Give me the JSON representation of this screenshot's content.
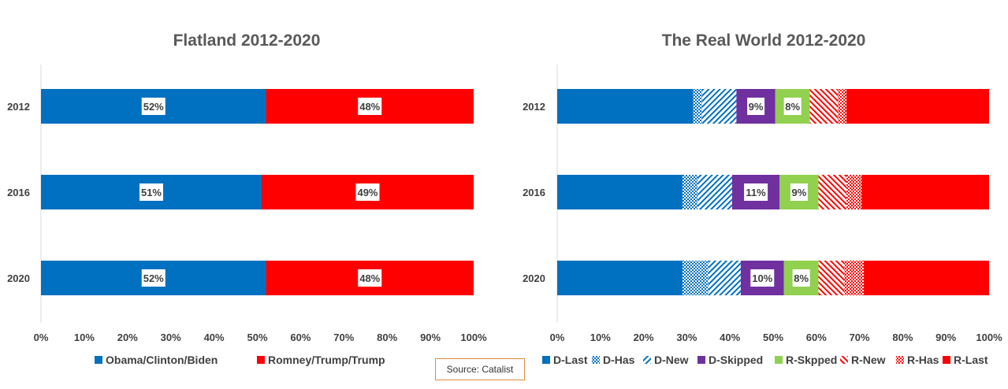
{
  "colors": {
    "D-Last": "#0070c0",
    "D-Has": "#0070c0",
    "D-New": "#0070c0",
    "D-Skipped": "#7030a0",
    "R-Skpped": "#92d050",
    "R-New": "#ff0000",
    "R-Has": "#ff0000",
    "R-Last": "#ff0000",
    "Obama/Clinton/Biden": "#0070c0",
    "Romney/Trump/Trump": "#ff0000"
  },
  "source": "Source: Catalist",
  "chart_data": [
    {
      "type": "bar",
      "orientation": "horizontal",
      "stacked": "100%",
      "title": "Flatland 2012-2020",
      "categories": [
        "2012",
        "2016",
        "2020"
      ],
      "xlim": [
        0,
        100
      ],
      "x_ticks": [
        "0%",
        "10%",
        "20%",
        "30%",
        "40%",
        "50%",
        "60%",
        "70%",
        "80%",
        "90%",
        "100%"
      ],
      "legend": "bottom",
      "series": [
        {
          "name": "Obama/Clinton/Biden",
          "values": [
            52,
            51,
            52
          ],
          "pattern": "solid",
          "labels": [
            "52%",
            "51%",
            "52%"
          ]
        },
        {
          "name": "Romney/Trump/Trump",
          "values": [
            48,
            49,
            48
          ],
          "pattern": "solid",
          "labels": [
            "48%",
            "49%",
            "48%"
          ]
        }
      ]
    },
    {
      "type": "bar",
      "orientation": "horizontal",
      "stacked": "100%",
      "title": "The Real World 2012-2020",
      "categories": [
        "2012",
        "2016",
        "2020"
      ],
      "xlim": [
        0,
        100
      ],
      "x_ticks": [
        "0%",
        "10%",
        "20%",
        "30%",
        "40%",
        "50%",
        "60%",
        "70%",
        "80%",
        "90%",
        "100%"
      ],
      "legend": "bottom",
      "series": [
        {
          "name": "D-Last",
          "values": [
            31.5,
            29,
            29
          ],
          "pattern": "solid",
          "labels": [
            "",
            "",
            ""
          ]
        },
        {
          "name": "D-Has",
          "values": [
            2,
            3.5,
            6
          ],
          "pattern": "dots",
          "labels": [
            "",
            "",
            ""
          ]
        },
        {
          "name": "D-New",
          "values": [
            8,
            8,
            7.5
          ],
          "pattern": "diagonal",
          "labels": [
            "",
            "",
            ""
          ]
        },
        {
          "name": "D-Skipped",
          "values": [
            9,
            11,
            10
          ],
          "pattern": "solid",
          "labels": [
            "9%",
            "11%",
            "10%"
          ]
        },
        {
          "name": "R-Skpped",
          "values": [
            8,
            9,
            8
          ],
          "pattern": "solid",
          "labels": [
            "8%",
            "9%",
            "8%"
          ]
        },
        {
          "name": "R-New",
          "values": [
            6.5,
            6.5,
            6
          ],
          "pattern": "diagonal",
          "labels": [
            "",
            "",
            ""
          ]
        },
        {
          "name": "R-Has",
          "values": [
            2,
            3.5,
            4.5
          ],
          "pattern": "dots",
          "labels": [
            "",
            "",
            ""
          ]
        },
        {
          "name": "R-Last",
          "values": [
            33,
            29.5,
            29
          ],
          "pattern": "solid",
          "labels": [
            "",
            "",
            ""
          ]
        }
      ]
    }
  ]
}
